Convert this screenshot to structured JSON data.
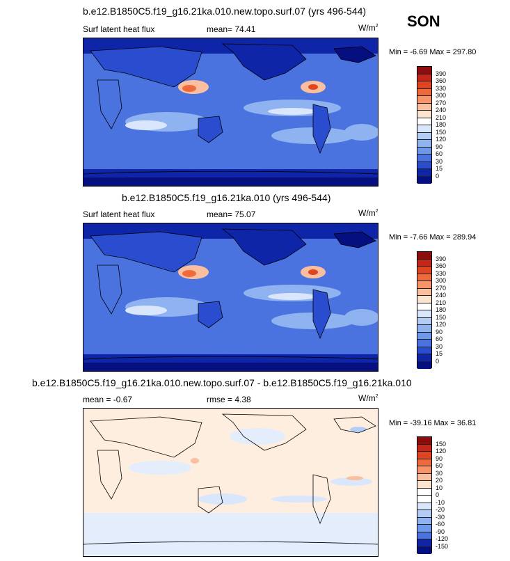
{
  "season": "SON",
  "panels": [
    {
      "title": "b.e12.B1850C5.f19_g16.21ka.010.new.topo.surf.07 (yrs 496-544)",
      "left_label": "Surf latent heat flux",
      "center_label": "mean=  74.41",
      "units": "W/m",
      "units_sup": "2",
      "minmax": "Min =  -6.69 Max = 297.80",
      "levels": [
        "390",
        "360",
        "330",
        "300",
        "270",
        "240",
        "210",
        "180",
        "150",
        "120",
        "90",
        "60",
        "30",
        "15",
        "0"
      ],
      "colors": [
        "#8b0d0d",
        "#c4261a",
        "#e0451f",
        "#ef6a3a",
        "#f6946a",
        "#f9bf9e",
        "#fde4cf",
        "#ffffff",
        "#d9e6fb",
        "#b3cdf6",
        "#8fb3f0",
        "#6e98ea",
        "#4a73e0",
        "#2a4ccf",
        "#0f25a8",
        "#050f80"
      ]
    },
    {
      "title": "b.e12.B1850C5.f19_g16.21ka.010 (yrs 496-544)",
      "left_label": "Surf latent heat flux",
      "center_label": "mean=  75.07",
      "units": "W/m",
      "units_sup": "2",
      "minmax": "Min =  -7.66 Max = 289.94",
      "levels": [
        "390",
        "360",
        "330",
        "300",
        "270",
        "240",
        "210",
        "180",
        "150",
        "120",
        "90",
        "60",
        "30",
        "15",
        "0"
      ],
      "colors": [
        "#8b0d0d",
        "#c4261a",
        "#e0451f",
        "#ef6a3a",
        "#f6946a",
        "#f9bf9e",
        "#fde4cf",
        "#ffffff",
        "#d9e6fb",
        "#b3cdf6",
        "#8fb3f0",
        "#6e98ea",
        "#4a73e0",
        "#2a4ccf",
        "#0f25a8",
        "#050f80"
      ]
    },
    {
      "title": "b.e12.B1850C5.f19_g16.21ka.010.new.topo.surf.07 - b.e12.B1850C5.f19_g16.21ka.010",
      "left_label": "mean =  -0.67",
      "center_label": "rmse =   4.38",
      "units": "W/m",
      "units_sup": "2",
      "minmax": "Min = -39.16 Max =  36.81",
      "levels": [
        "150",
        "120",
        "90",
        "60",
        "30",
        "20",
        "10",
        "0",
        "-10",
        "-20",
        "-30",
        "-60",
        "-90",
        "-120",
        "-150"
      ],
      "colors": [
        "#8b0d0d",
        "#c4261a",
        "#e0451f",
        "#ef6a3a",
        "#f6946a",
        "#f9bf9e",
        "#fde4cf",
        "#ffffff",
        "#ffffff",
        "#d9e6fb",
        "#b3cdf6",
        "#8fb3f0",
        "#6e98ea",
        "#4a73e0",
        "#0f25a8",
        "#050f80"
      ]
    }
  ]
}
